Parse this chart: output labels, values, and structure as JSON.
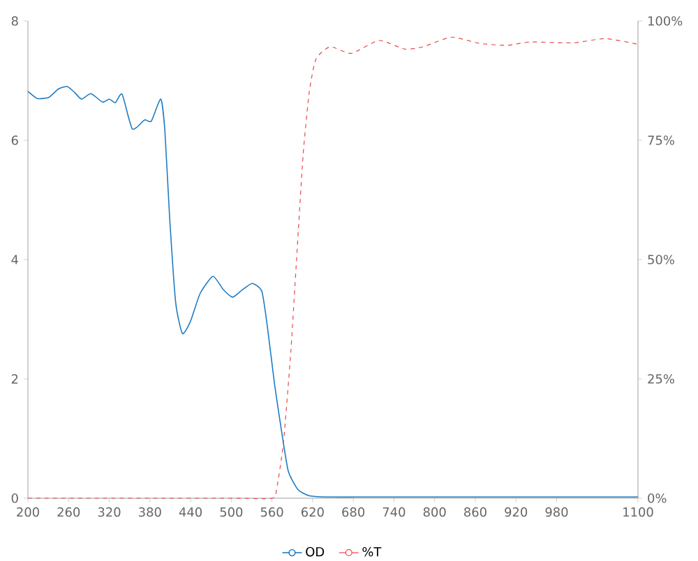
{
  "chart_data": {
    "type": "line",
    "xlim": [
      200,
      1100
    ],
    "xticks": [
      200,
      260,
      320,
      380,
      440,
      500,
      560,
      620,
      680,
      740,
      800,
      860,
      920,
      980,
      1100
    ],
    "ylim": [
      0,
      8
    ],
    "yticks": [
      0,
      2,
      4,
      6,
      8
    ],
    "y2lim": [
      0,
      100
    ],
    "y2ticks": [
      {
        "value": 0,
        "label": "0%"
      },
      {
        "value": 25,
        "label": "25%"
      },
      {
        "value": 50,
        "label": "50%"
      },
      {
        "value": 75,
        "label": "75%"
      },
      {
        "value": 100,
        "label": "100%"
      }
    ],
    "legend": "bottom",
    "series": [
      {
        "name": "OD",
        "color": "#1f7bc1",
        "line_style": "solid",
        "x": [
          200,
          214,
          231,
          245,
          258,
          269,
          279,
          293,
          310,
          320,
          329,
          339,
          354,
          372,
          382,
          396,
          402,
          409,
          418,
          428,
          440,
          454,
          473,
          488,
          502,
          516,
          531,
          545,
          553,
          564,
          574,
          584,
          598,
          615,
          640,
          700,
          800,
          900,
          1000,
          1100
        ],
        "values": [
          6.82,
          6.7,
          6.72,
          6.86,
          6.9,
          6.8,
          6.69,
          6.78,
          6.64,
          6.69,
          6.63,
          6.77,
          6.19,
          6.34,
          6.32,
          6.69,
          6.17,
          4.72,
          3.28,
          2.76,
          2.97,
          3.43,
          3.72,
          3.5,
          3.37,
          3.49,
          3.6,
          3.47,
          2.9,
          1.9,
          1.14,
          0.46,
          0.15,
          0.04,
          0.02,
          0.02,
          0.02,
          0.02,
          0.02,
          0.02
        ]
      },
      {
        "name": "%T",
        "color": "#e8474a",
        "line_style": "dashed",
        "axis": "y2",
        "x": [
          200,
          300,
          400,
          500,
          560,
          567,
          577,
          588,
          598,
          606,
          615,
          625,
          646,
          677,
          718,
          756,
          783,
          825,
          866,
          907,
          942,
          1004,
          1052,
          1100
        ],
        "values": [
          0,
          0,
          0,
          0,
          0,
          2,
          11.7,
          31,
          54,
          72,
          85,
          92,
          94.6,
          93.2,
          95.9,
          94.1,
          94.6,
          96.6,
          95.3,
          94.9,
          95.6,
          95.4,
          96.3,
          95.1
        ]
      }
    ]
  }
}
